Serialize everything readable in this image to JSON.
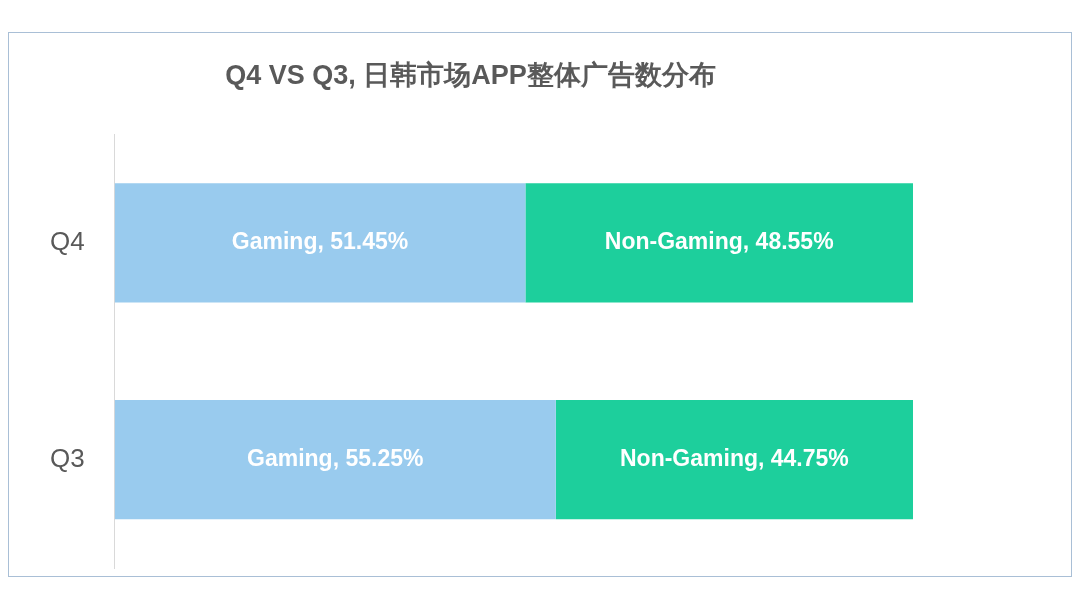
{
  "chart_data": {
    "type": "bar",
    "title": "Q4 VS Q3, 日韩市场APP整体广告数分布",
    "orientation": "horizontal",
    "stacked": true,
    "categories": [
      "Q4",
      "Q3"
    ],
    "xlim": [
      0,
      100
    ],
    "tick_labels": "y",
    "series": [
      {
        "color": "#99cbee",
        "values": [
          51.45,
          55.25
        ],
        "value_labels": [
          "Gaming, 51.45%",
          "Gaming, 55.25%"
        ]
      },
      {
        "color": "#1dcf9c",
        "values": [
          48.55,
          44.75
        ],
        "value_labels": [
          "Non-Gaming, 48.55%",
          "Non-Gaming, 44.75%"
        ]
      }
    ]
  }
}
